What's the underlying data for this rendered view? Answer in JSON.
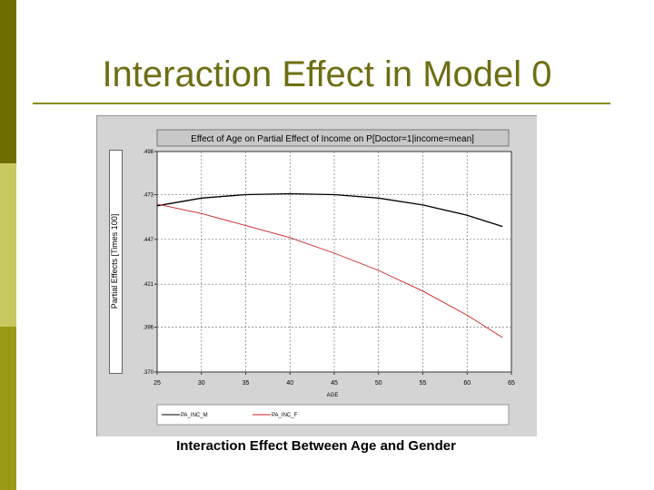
{
  "slide": {
    "title": "Interaction Effect in Model 0"
  },
  "caption": "Interaction Effect Between Age and Gender",
  "colors": {
    "male": "#000000",
    "female": "#cc2222",
    "title_text": "#6e6e14"
  },
  "chart_data": {
    "type": "line",
    "title": "Effect of Age on Partial Effect of Income on P[Doctor=1|income=mean]",
    "ylabel": "Partial Effects [Times 100]",
    "xlabel": "AGE",
    "xlim": [
      25,
      65
    ],
    "ylim": [
      0.37,
      0.498
    ],
    "xticks": [
      25,
      30,
      35,
      40,
      45,
      50,
      55,
      60,
      65
    ],
    "xtick_labels": [
      "25",
      "30",
      "35",
      "40",
      "45",
      "50",
      "55",
      "60",
      "65"
    ],
    "yticks": [
      0.37,
      0.396,
      0.421,
      0.447,
      0.473,
      0.498
    ],
    "ytick_labels": [
      ".370",
      ".396",
      ".421",
      ".447",
      ".473",
      ".498"
    ],
    "grid": true,
    "legend_position": "bottom",
    "series": [
      {
        "name": "PA_INC_M",
        "x": [
          25,
          30,
          35,
          40,
          45,
          50,
          55,
          60,
          64
        ],
        "y": [
          0.4665,
          0.471,
          0.473,
          0.4735,
          0.473,
          0.471,
          0.467,
          0.461,
          0.4545
        ]
      },
      {
        "name": "PA_INC_F",
        "x": [
          25,
          30,
          35,
          40,
          45,
          50,
          55,
          60,
          64
        ],
        "y": [
          0.4675,
          0.462,
          0.455,
          0.448,
          0.439,
          0.429,
          0.417,
          0.403,
          0.39
        ]
      }
    ]
  }
}
